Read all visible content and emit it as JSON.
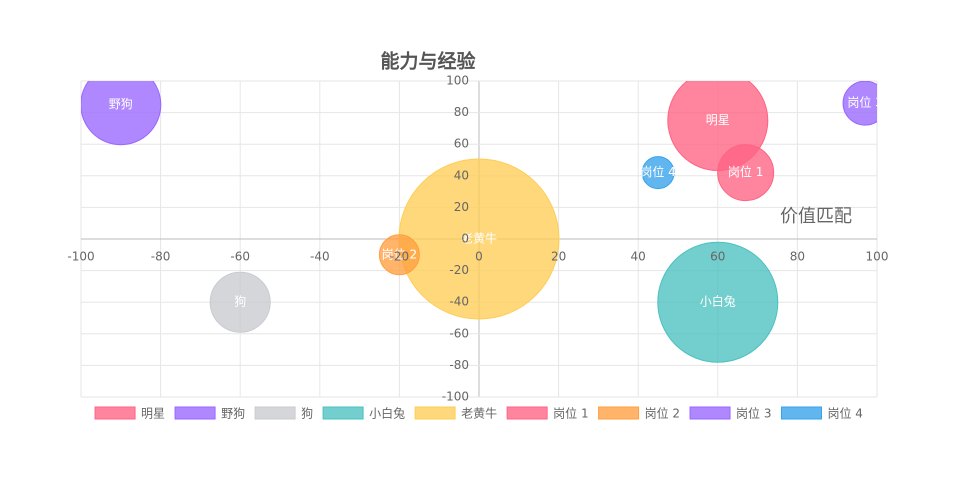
{
  "chart_data": {
    "type": "bubble",
    "title": "能力与经验",
    "annotation": "价值匹配",
    "xlim": [
      -100,
      100
    ],
    "xticks": [
      -100,
      -80,
      -60,
      -40,
      -20,
      0,
      20,
      40,
      60,
      80,
      100
    ],
    "ylim": [
      -100,
      100
    ],
    "yticks": [
      -100,
      -80,
      -60,
      -40,
      -20,
      0,
      20,
      40,
      60,
      80,
      100
    ],
    "grid": true,
    "legend": "bottom",
    "series": [
      {
        "name": "明星",
        "color": "#ff6384",
        "x": [
          60
        ],
        "values": [
          75
        ],
        "sizes": [
          50
        ]
      },
      {
        "name": "野狗",
        "color": "#9966ff",
        "x": [
          -90
        ],
        "values": [
          85
        ],
        "sizes": [
          40
        ]
      },
      {
        "name": "狗",
        "color": "#c9cbcf",
        "x": [
          -60
        ],
        "values": [
          -40
        ],
        "sizes": [
          30
        ]
      },
      {
        "name": "小白兔",
        "color": "#4bc0c0",
        "x": [
          60
        ],
        "values": [
          -40
        ],
        "sizes": [
          60
        ]
      },
      {
        "name": "老黄牛",
        "color": "#ffcd56",
        "x": [
          0
        ],
        "values": [
          0
        ],
        "sizes": [
          80
        ]
      },
      {
        "name": "岗位 1",
        "color": "#ff6384",
        "x": [
          67
        ],
        "values": [
          42
        ],
        "sizes": [
          28
        ]
      },
      {
        "name": "岗位 2",
        "color": "#ff9f40",
        "x": [
          -20
        ],
        "values": [
          -10
        ],
        "sizes": [
          20
        ]
      },
      {
        "name": "岗位 3",
        "color": "#9966ff",
        "x": [
          97
        ],
        "values": [
          86
        ],
        "sizes": [
          22
        ]
      },
      {
        "name": "岗位 4",
        "color": "#36a2eb",
        "x": [
          45
        ],
        "values": [
          42
        ],
        "sizes": [
          16
        ]
      }
    ]
  }
}
